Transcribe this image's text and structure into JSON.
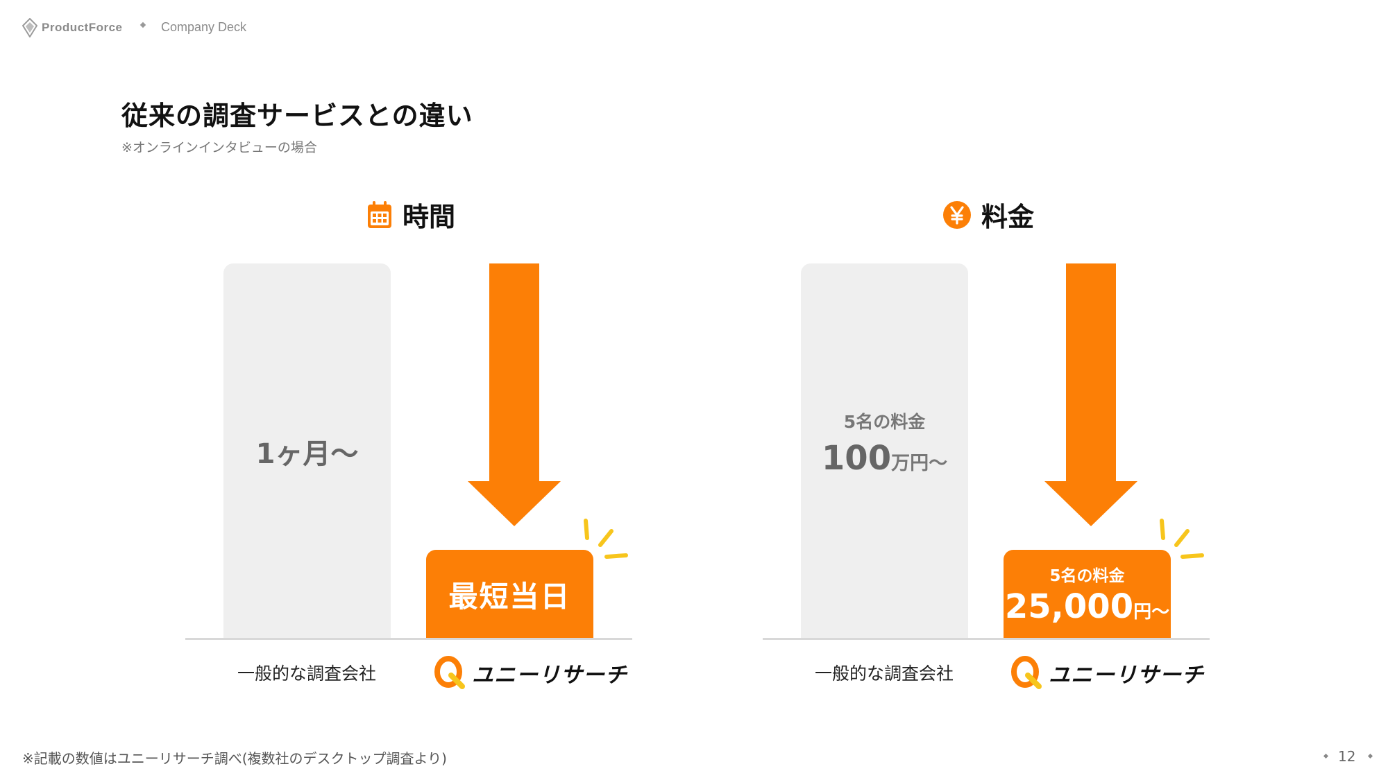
{
  "header": {
    "brand": "ProductForce",
    "deck": "Company Deck"
  },
  "title": "従来の調査サービスとの違い",
  "subtitle": "※オンラインインタビューの場合",
  "sections": {
    "time": {
      "heading": "時間",
      "icon": "calendar-icon",
      "conventional_value": "1ヶ月〜",
      "conventional_label": "一般的な調査会社",
      "unii_value": "最短当日",
      "unii_brand": "ユニーリサーチ"
    },
    "price": {
      "heading": "料金",
      "icon": "yen-icon",
      "conventional_caption": "5名の料金",
      "conventional_value": "100",
      "conventional_unit": "万円〜",
      "conventional_label": "一般的な調査会社",
      "unii_caption": "5名の料金",
      "unii_value": "25,000",
      "unii_unit": "円〜",
      "unii_brand": "ユニーリサーチ"
    }
  },
  "footnote": "※記載の数値はユニーリサーチ調べ(複数社のデスクトップ調査より)",
  "page_number": "12",
  "colors": {
    "accent": "#fc7f06",
    "highlight": "#f7c51c",
    "bar_gray": "#efefef"
  }
}
